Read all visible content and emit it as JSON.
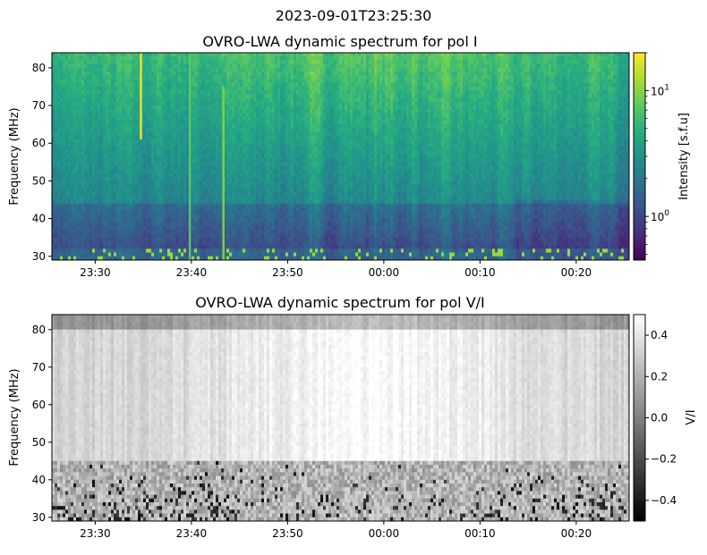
{
  "figure": {
    "suptitle": "2023-09-01T23:25:30"
  },
  "chart_data": [
    {
      "type": "heatmap",
      "title": "OVRO-LWA dynamic spectrum for pol I",
      "xlabel": "",
      "ylabel": "Frequency (MHz)",
      "xlim": [
        "23:25:30",
        "00:25:30"
      ],
      "ylim": [
        29,
        84
      ],
      "x_ticks": [
        "23:30",
        "23:40",
        "23:50",
        "00:00",
        "00:10",
        "00:20"
      ],
      "y_ticks": [
        30,
        40,
        50,
        60,
        70,
        80
      ],
      "colormap": "viridis",
      "colorbar": {
        "label": "Intensity [s.f.u]",
        "scale": "log",
        "range": [
          0.45,
          20
        ],
        "tick_base": "10",
        "ticks": [
          {
            "value": 10,
            "exp": "1"
          },
          {
            "value": 1,
            "exp": "0"
          }
        ]
      },
      "features": [
        {
          "kind": "vertical-burst",
          "time": "23:34:45",
          "freq_range": [
            61,
            84
          ],
          "intensity": 20
        },
        {
          "kind": "vertical-burst",
          "time": "23:39:50",
          "freq_range": [
            29,
            84
          ],
          "intensity": 8
        },
        {
          "kind": "vertical-burst",
          "time": "23:43:20",
          "freq_range": [
            29,
            75
          ],
          "intensity": 10
        }
      ]
    },
    {
      "type": "heatmap",
      "title": "OVRO-LWA dynamic spectrum for pol V/I",
      "xlabel": "",
      "ylabel": "Frequency (MHz)",
      "xlim": [
        "23:25:30",
        "00:25:30"
      ],
      "ylim": [
        29,
        84
      ],
      "x_ticks": [
        "23:30",
        "23:40",
        "23:50",
        "00:00",
        "00:10",
        "00:20"
      ],
      "y_ticks": [
        30,
        40,
        50,
        60,
        70,
        80
      ],
      "colormap": "gray",
      "colorbar": {
        "label": "V/I",
        "scale": "linear",
        "range": [
          -0.5,
          0.5
        ],
        "ticks": [
          {
            "value": 0.4,
            "label": "0.4"
          },
          {
            "value": 0.2,
            "label": "0.2"
          },
          {
            "value": 0.0,
            "label": "0.0"
          },
          {
            "value": -0.2,
            "label": "−0.2"
          },
          {
            "value": -0.4,
            "label": "−0.4"
          }
        ]
      }
    }
  ]
}
